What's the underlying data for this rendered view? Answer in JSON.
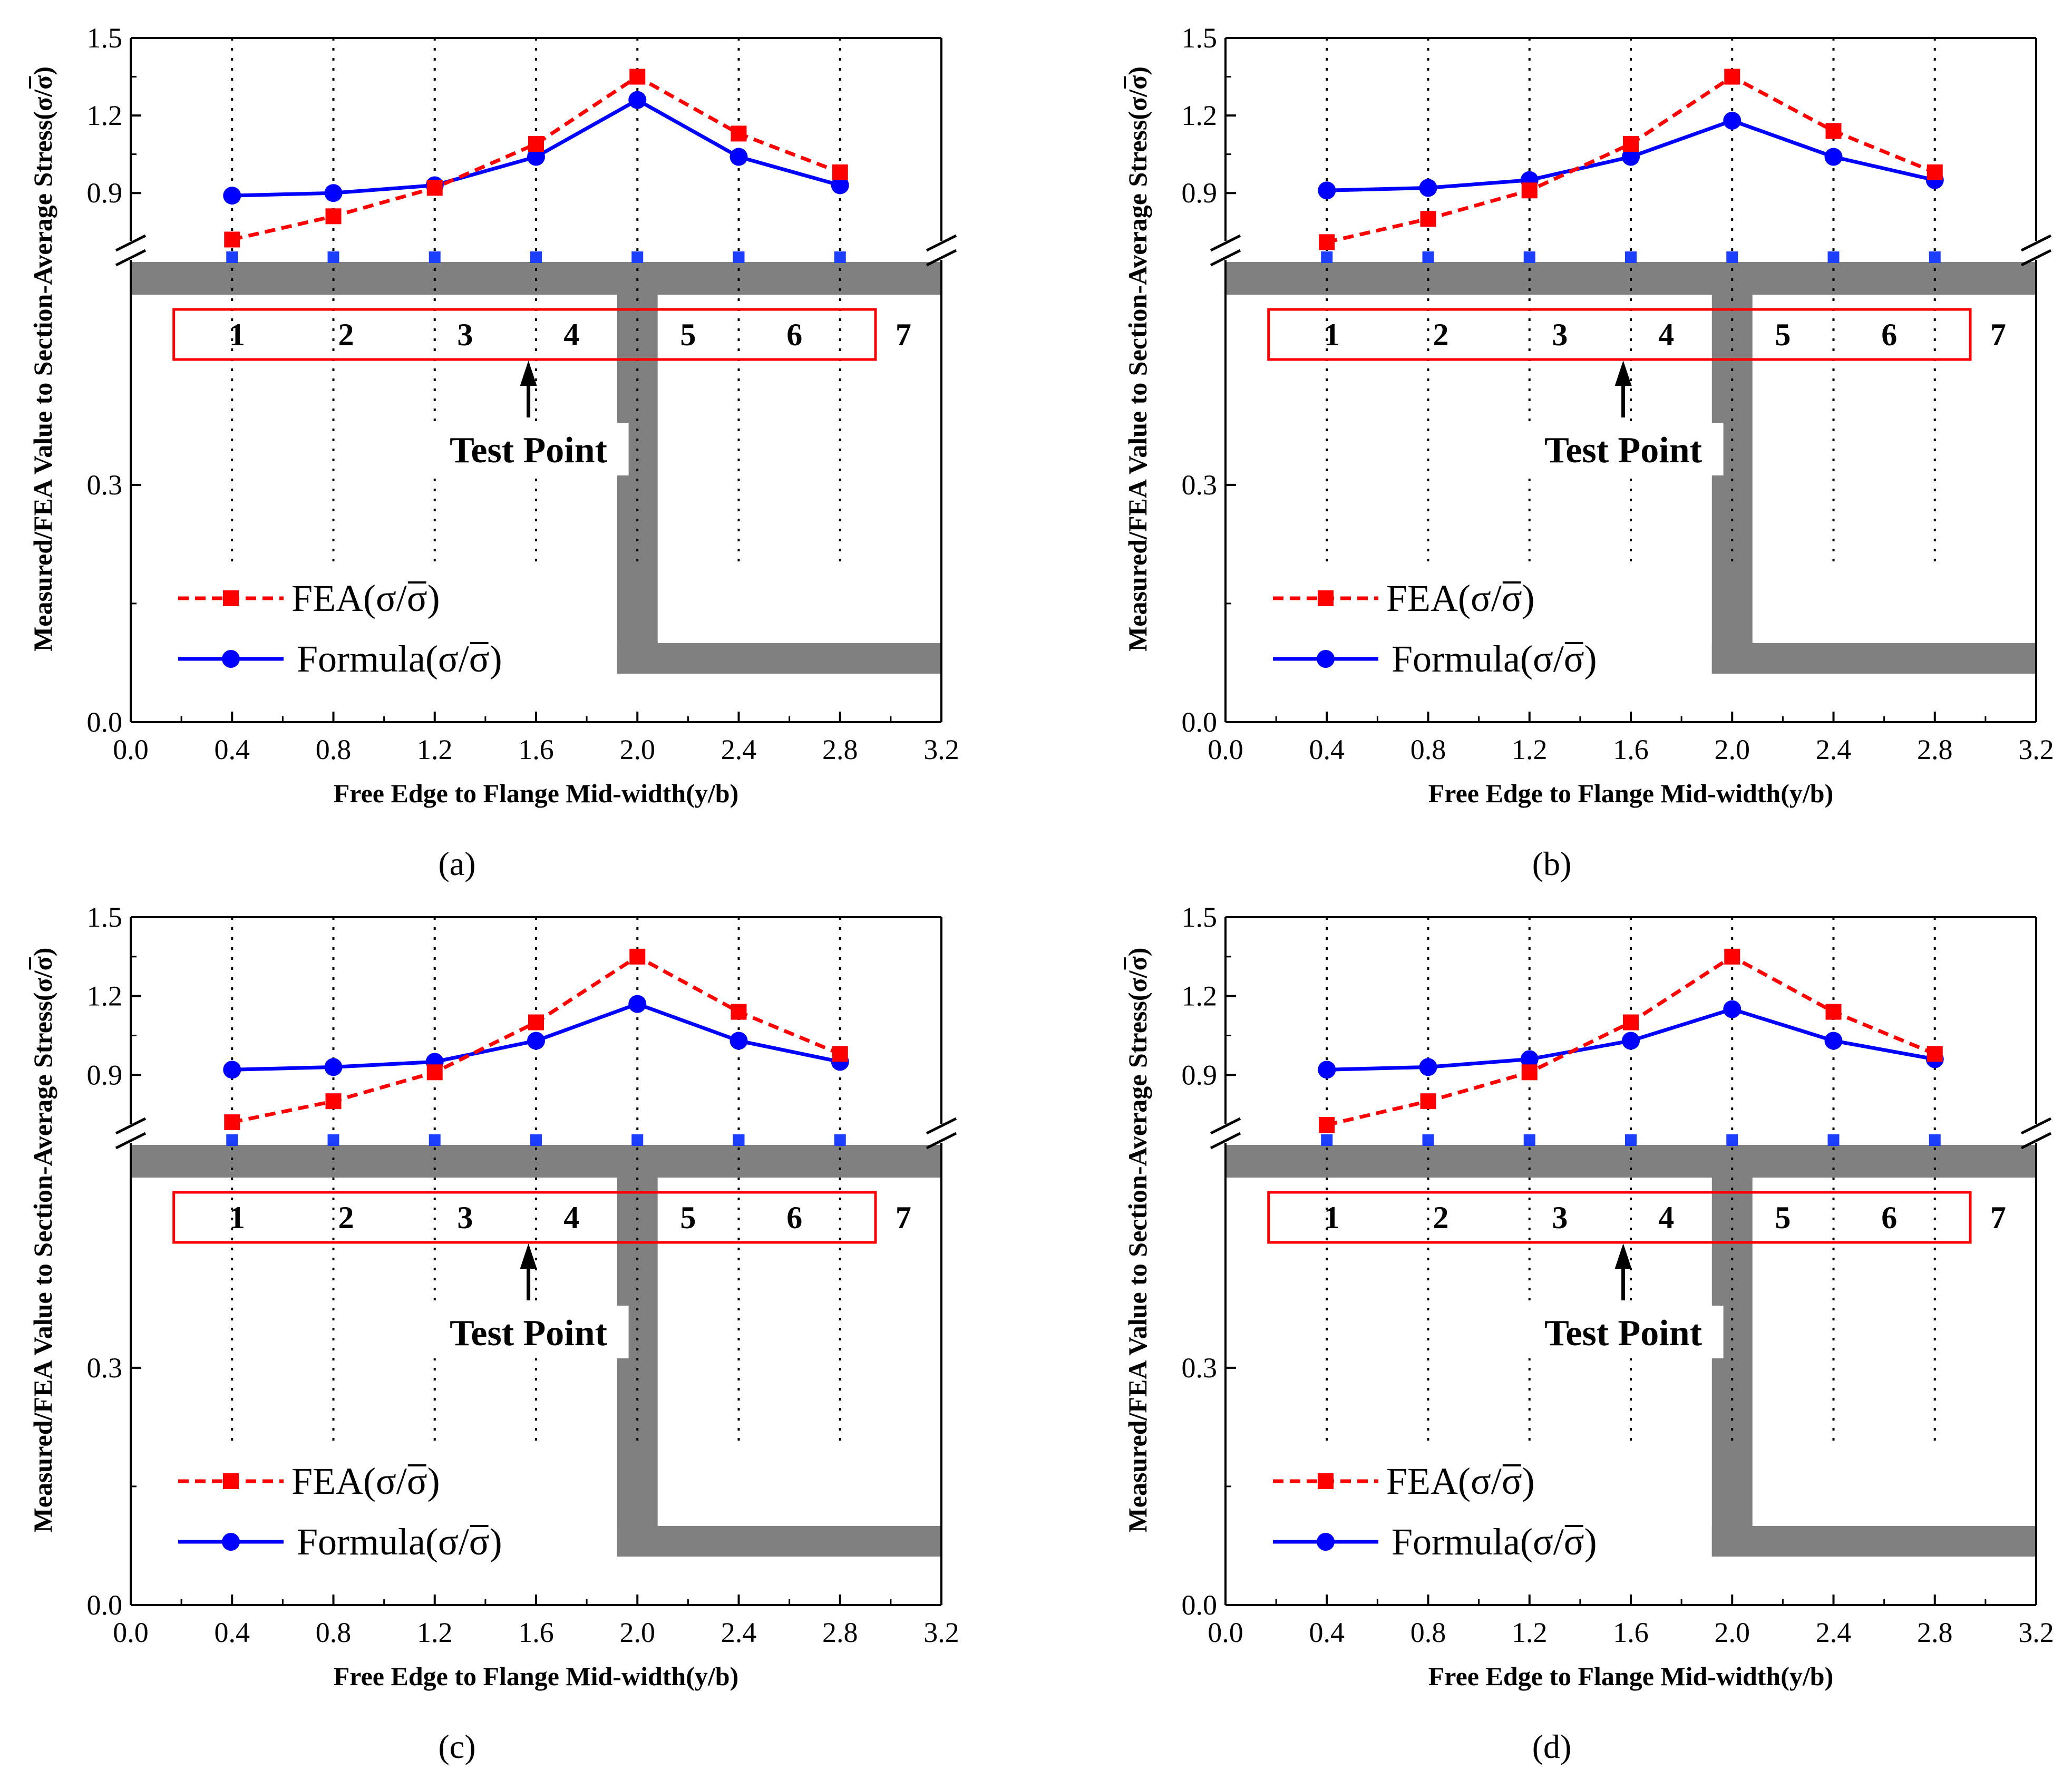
{
  "labels": {
    "test_point": "Test Point",
    "point_numbers": [
      "1",
      "2",
      "3",
      "4",
      "5",
      "6",
      "7"
    ]
  },
  "colors": {
    "fea": "#ff0000",
    "formula": "#0000ff",
    "section": "#808080",
    "box": "#ff0000",
    "markers": "#1c3fff"
  },
  "chart_data": [
    {
      "type": "line",
      "caption": "(a)",
      "caption_letter": "a",
      "xlabel": "Free Edge to Flange Mid-width(y/b)",
      "ylabel": "Measured/FEA Value to Section-Average Stress(σ/σ)",
      "xlim": [
        0,
        3.2
      ],
      "x_ticks": [
        "0.0",
        "0.4",
        "0.8",
        "1.2",
        "1.6",
        "2.0",
        "2.4",
        "2.8",
        "3.2"
      ],
      "y_ticks": [
        "0.0",
        "0.3",
        "0.9",
        "1.2",
        "1.5"
      ],
      "y_axis": "broken between 0.3 and 0.9",
      "x": [
        0.4,
        0.8,
        1.2,
        1.6,
        2.0,
        2.4,
        2.8
      ],
      "series": [
        {
          "name": "FEA(σ/σ)",
          "style": "dashed-square",
          "values": [
            0.72,
            0.81,
            0.92,
            1.09,
            1.35,
            1.13,
            0.98
          ]
        },
        {
          "name": "Formula(σ/σ)",
          "style": "solid-circle",
          "values": [
            0.89,
            0.9,
            0.93,
            1.04,
            1.26,
            1.04,
            0.93
          ]
        }
      ]
    },
    {
      "type": "line",
      "caption": "(b)",
      "caption_letter": "b",
      "xlabel": "Free Edge to Flange Mid-width(y/b)",
      "ylabel": "Measured/FEA Value to Section-Average Stress(σ/σ)",
      "xlim": [
        0,
        3.2
      ],
      "x_ticks": [
        "0.0",
        "0.4",
        "0.8",
        "1.2",
        "1.6",
        "2.0",
        "2.4",
        "2.8",
        "3.2"
      ],
      "y_ticks": [
        "0.0",
        "0.3",
        "0.9",
        "1.2",
        "1.5"
      ],
      "y_axis": "broken between 0.3 and 0.9",
      "x": [
        0.4,
        0.8,
        1.2,
        1.6,
        2.0,
        2.4,
        2.8
      ],
      "series": [
        {
          "name": "FEA(σ/σ)",
          "style": "dashed-square",
          "values": [
            0.71,
            0.8,
            0.91,
            1.09,
            1.35,
            1.14,
            0.98
          ]
        },
        {
          "name": "Formula(σ/σ)",
          "style": "solid-circle",
          "values": [
            0.91,
            0.92,
            0.95,
            1.04,
            1.18,
            1.04,
            0.95
          ]
        }
      ]
    },
    {
      "type": "line",
      "caption": "(c)",
      "caption_letter": "c",
      "xlabel": "Free Edge to Flange Mid-width(y/b)",
      "ylabel": "Measured/FEA Value to Section-Average Stress(σ/σ)",
      "xlim": [
        0,
        3.2
      ],
      "x_ticks": [
        "0.0",
        "0.4",
        "0.8",
        "1.2",
        "1.6",
        "2.0",
        "2.4",
        "2.8",
        "3.2"
      ],
      "y_ticks": [
        "0.0",
        "0.3",
        "0.9",
        "1.2",
        "1.5"
      ],
      "y_axis": "broken between 0.3 and 0.9",
      "x": [
        0.4,
        0.8,
        1.2,
        1.6,
        2.0,
        2.4,
        2.8
      ],
      "series": [
        {
          "name": "FEA(σ/σ)",
          "style": "dashed-square",
          "values": [
            0.72,
            0.8,
            0.91,
            1.1,
            1.35,
            1.14,
            0.98
          ]
        },
        {
          "name": "Formula(σ/σ)",
          "style": "solid-circle",
          "values": [
            0.92,
            0.93,
            0.95,
            1.03,
            1.17,
            1.03,
            0.95
          ]
        }
      ]
    },
    {
      "type": "line",
      "caption": "(d)",
      "caption_letter": "d",
      "xlabel": "Free Edge to Flange Mid-width(y/b)",
      "ylabel": "Measured/FEA Value to Section-Average Stress(σ/σ)",
      "xlim": [
        0,
        3.2
      ],
      "x_ticks": [
        "0.0",
        "0.4",
        "0.8",
        "1.2",
        "1.6",
        "2.0",
        "2.4",
        "2.8",
        "3.2"
      ],
      "y_ticks": [
        "0.0",
        "0.3",
        "0.9",
        "1.2",
        "1.5"
      ],
      "y_axis": "broken between 0.3 and 0.9",
      "x": [
        0.4,
        0.8,
        1.2,
        1.6,
        2.0,
        2.4,
        2.8
      ],
      "series": [
        {
          "name": "FEA(σ/σ)",
          "style": "dashed-square",
          "values": [
            0.71,
            0.8,
            0.91,
            1.1,
            1.35,
            1.14,
            0.98
          ]
        },
        {
          "name": "Formula(σ/σ)",
          "style": "solid-circle",
          "values": [
            0.92,
            0.93,
            0.96,
            1.03,
            1.15,
            1.03,
            0.96
          ]
        }
      ]
    }
  ]
}
